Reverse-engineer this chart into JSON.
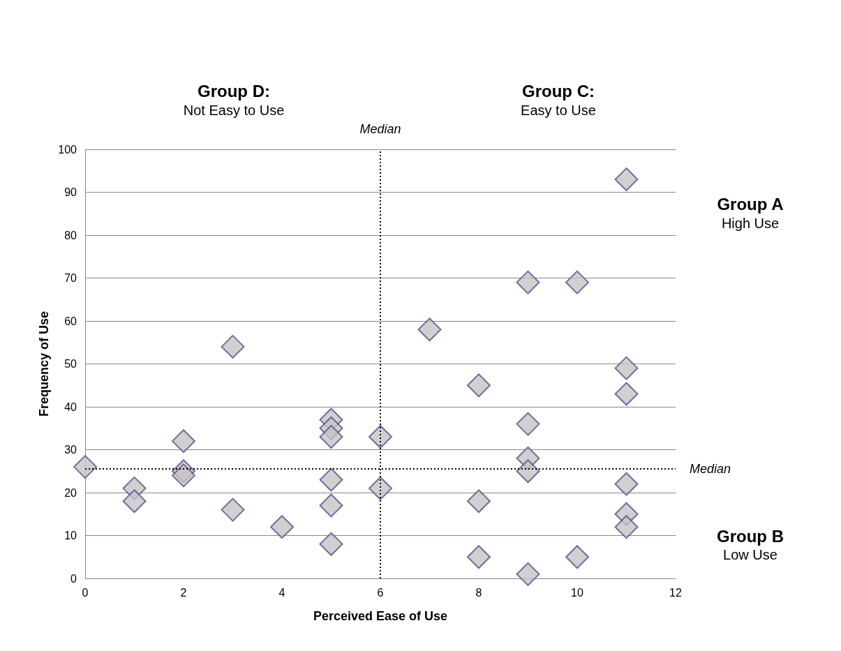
{
  "chart_data": {
    "type": "scatter",
    "xlabel": "Perceived Ease of Use",
    "ylabel": "Frequency of Use",
    "x": [
      0,
      1,
      1,
      2,
      2,
      2,
      3,
      3,
      4,
      5,
      5,
      5,
      5,
      5,
      5,
      6,
      6,
      7,
      8,
      8,
      8,
      9,
      9,
      9,
      9,
      9,
      10,
      10,
      11,
      11,
      11,
      11,
      11,
      11
    ],
    "values": [
      26,
      21,
      18,
      32,
      25,
      24,
      54,
      16,
      12,
      37,
      35,
      33,
      23,
      17,
      8,
      33,
      21,
      58,
      45,
      18,
      5,
      69,
      36,
      28,
      25,
      1,
      69,
      5,
      93,
      49,
      43,
      22,
      15,
      12
    ],
    "color": "#c4c4c4",
    "marker": "diamond",
    "xlim": [
      0,
      12
    ],
    "xticks": [
      0,
      2,
      4,
      6,
      8,
      10,
      12
    ],
    "ylim": [
      0,
      100
    ],
    "yticks": [
      0,
      10,
      20,
      30,
      40,
      50,
      60,
      70,
      80,
      90,
      100
    ],
    "grid": "y",
    "ref_lines": [
      {
        "axis": "x",
        "value": 6,
        "label": "Median",
        "line_style": "dotted",
        "color": "#000000"
      },
      {
        "axis": "y",
        "value": 25.5,
        "label": "Median",
        "line_style": "dotted",
        "color": "#000000"
      }
    ],
    "annotations": [
      "Group D:",
      "Not Easy to Use",
      "Group C:",
      "Easy to Use",
      "Group A",
      "High Use",
      "Group B",
      "Low Use"
    ]
  }
}
